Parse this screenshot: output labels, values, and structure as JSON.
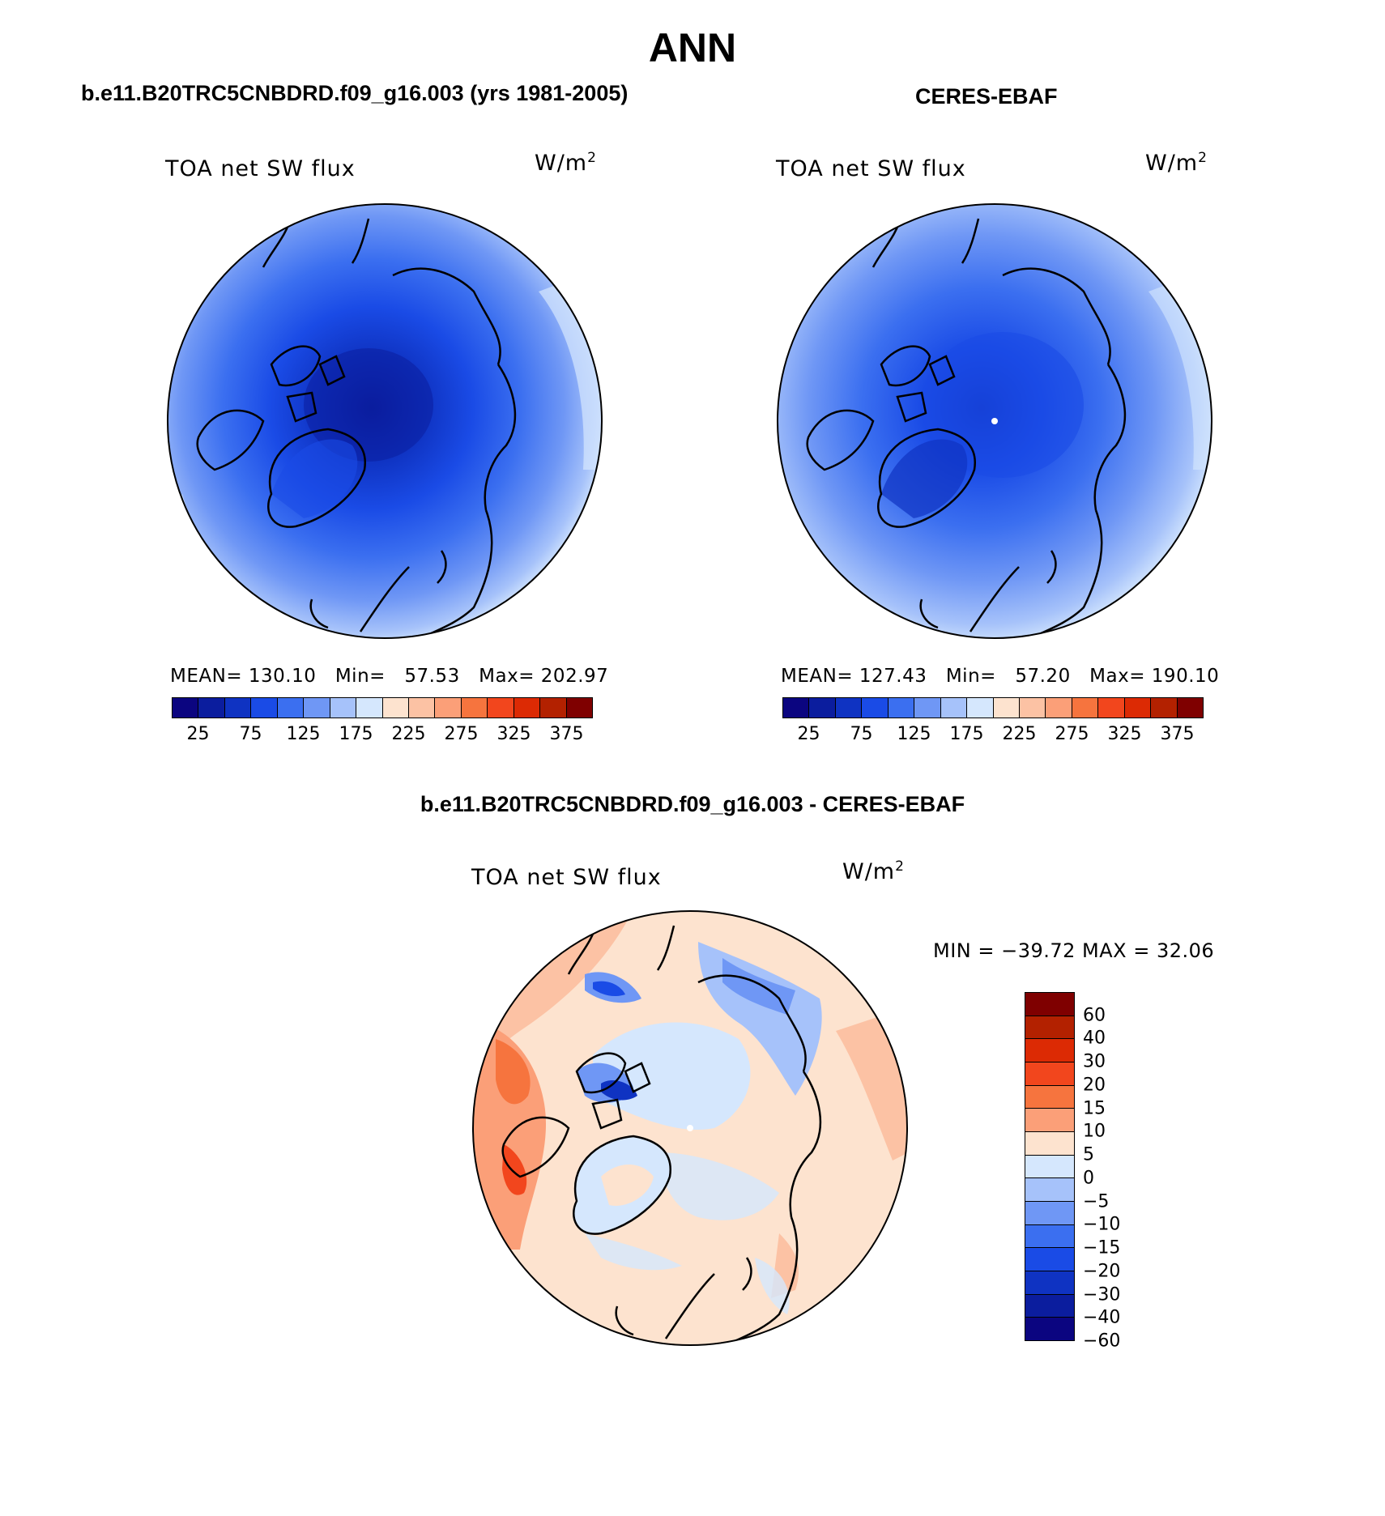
{
  "figure": {
    "title": "ANN"
  },
  "panels": {
    "model": {
      "title": "b.e11.B20TRC5CNBDRD.f09_g16.003 (yrs 1981-2005)",
      "label": "TOA net SW flux",
      "units_base": "W/m",
      "units_exp": "2",
      "stats": {
        "mean_label": "MEAN=",
        "mean": "130.10",
        "min_label": "Min=",
        "min": "57.53",
        "max_label": "Max=",
        "max": "202.97"
      }
    },
    "obs": {
      "title": "CERES-EBAF",
      "label": "TOA net SW flux",
      "units_base": "W/m",
      "units_exp": "2",
      "stats": {
        "mean_label": "MEAN=",
        "mean": "127.43",
        "min_label": "Min=",
        "min": "57.20",
        "max_label": "Max=",
        "max": "190.10"
      }
    },
    "diff": {
      "title": "b.e11.B20TRC5CNBDRD.f09_g16.003 - CERES-EBAF",
      "label": "TOA net SW flux",
      "units_base": "W/m",
      "units_exp": "2",
      "stats_text": "MIN = −39.72 MAX =   32.06"
    }
  },
  "colorbars": {
    "abs": {
      "colors": [
        "#0b0580",
        "#0b1d9e",
        "#0f33c2",
        "#1a4be6",
        "#3b6ff0",
        "#6f97f5",
        "#a6c2fa",
        "#d5e7fd",
        "#fde3cf",
        "#fcc2a4",
        "#fb9f78",
        "#f6743e",
        "#f2461d",
        "#dc2a04",
        "#b32100",
        "#7f0000"
      ],
      "ticks": [
        "25",
        "75",
        "125",
        "175",
        "225",
        "275",
        "325",
        "375"
      ]
    },
    "diff": {
      "colors": [
        "#7f0000",
        "#b32100",
        "#dc2a04",
        "#f2461d",
        "#f6743e",
        "#fb9f78",
        "#fde3cf",
        "#d5e7fd",
        "#a6c2fa",
        "#6f97f5",
        "#3b6ff0",
        "#1a4be6",
        "#0f33c2",
        "#0b1d9e",
        "#0b0580"
      ],
      "ticks": [
        "60",
        "40",
        "30",
        "20",
        "15",
        "10",
        "5",
        "0",
        "−5",
        "−10",
        "−15",
        "−20",
        "−30",
        "−40",
        "−60"
      ]
    }
  }
}
